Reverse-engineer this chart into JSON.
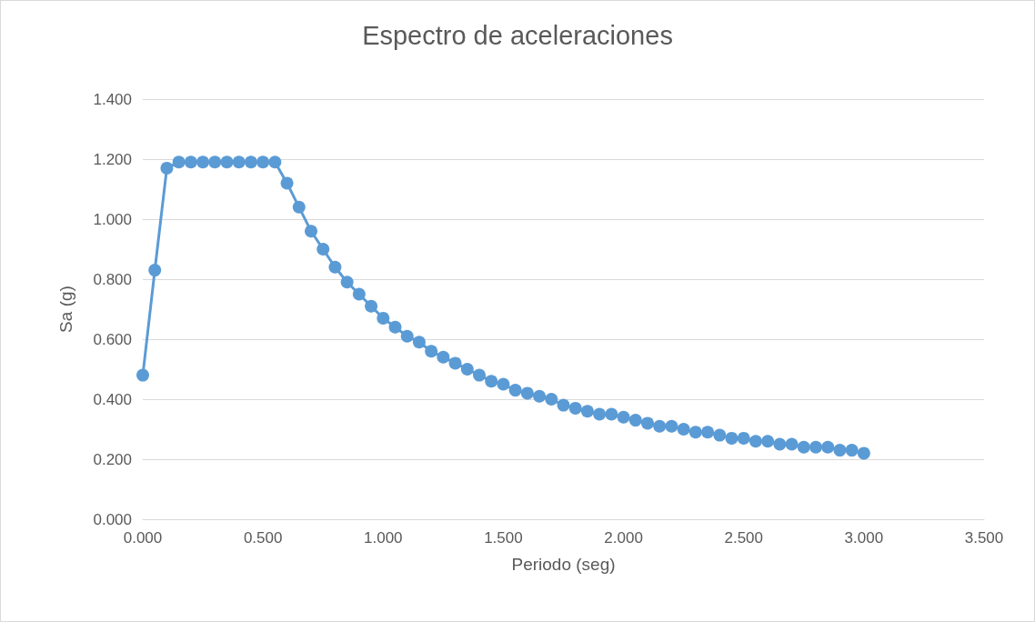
{
  "chart_data": {
    "type": "line",
    "title": "Espectro de aceleraciones",
    "xlabel": "Periodo (seg)",
    "ylabel": "Sa (g)",
    "x": [
      0,
      0.05,
      0.1,
      0.15,
      0.2,
      0.25,
      0.3,
      0.35,
      0.4,
      0.45,
      0.5,
      0.55,
      0.6,
      0.65,
      0.7,
      0.75,
      0.8,
      0.85,
      0.9,
      0.95,
      1.0,
      1.05,
      1.1,
      1.15,
      1.2,
      1.25,
      1.3,
      1.35,
      1.4,
      1.45,
      1.5,
      1.55,
      1.6,
      1.65,
      1.7,
      1.75,
      1.8,
      1.85,
      1.9,
      1.95,
      2.0,
      2.05,
      2.1,
      2.15,
      2.2,
      2.25,
      2.3,
      2.35,
      2.4,
      2.45,
      2.5,
      2.55,
      2.6,
      2.65,
      2.7,
      2.75,
      2.8,
      2.85,
      2.9,
      2.95,
      3.0
    ],
    "series": [
      {
        "color": "#5b9bd5",
        "values": [
          0.48,
          0.83,
          1.17,
          1.19,
          1.19,
          1.19,
          1.19,
          1.19,
          1.19,
          1.19,
          1.19,
          1.19,
          1.12,
          1.04,
          0.96,
          0.9,
          0.84,
          0.79,
          0.75,
          0.71,
          0.67,
          0.64,
          0.61,
          0.59,
          0.56,
          0.54,
          0.52,
          0.5,
          0.48,
          0.46,
          0.45,
          0.43,
          0.42,
          0.41,
          0.4,
          0.38,
          0.37,
          0.36,
          0.35,
          0.35,
          0.34,
          0.33,
          0.32,
          0.31,
          0.31,
          0.3,
          0.29,
          0.29,
          0.28,
          0.27,
          0.27,
          0.26,
          0.26,
          0.25,
          0.25,
          0.24,
          0.24,
          0.24,
          0.23,
          0.23,
          0.22
        ]
      }
    ],
    "xlim": [
      0,
      3.5
    ],
    "xticks": [
      {
        "value": 0,
        "label": "0.000"
      },
      {
        "value": 0.5,
        "label": "0.500"
      },
      {
        "value": 1,
        "label": "1.000"
      },
      {
        "value": 1.5,
        "label": "1.500"
      },
      {
        "value": 2,
        "label": "2.000"
      },
      {
        "value": 2.5,
        "label": "2.500"
      },
      {
        "value": 3,
        "label": "3.000"
      },
      {
        "value": 3.5,
        "label": "3.500"
      }
    ],
    "ylim": [
      0,
      1.4
    ],
    "yticks": [
      {
        "value": 0,
        "label": "0.000"
      },
      {
        "value": 0.2,
        "label": "0.200"
      },
      {
        "value": 0.4,
        "label": "0.400"
      },
      {
        "value": 0.6,
        "label": "0.600"
      },
      {
        "value": 0.8,
        "label": "0.800"
      },
      {
        "value": 1,
        "label": "1.000"
      },
      {
        "value": 1.2,
        "label": "1.200"
      },
      {
        "value": 1.4,
        "label": "1.400"
      }
    ],
    "grid": "y",
    "marker": "circle",
    "line_style": "solid"
  }
}
